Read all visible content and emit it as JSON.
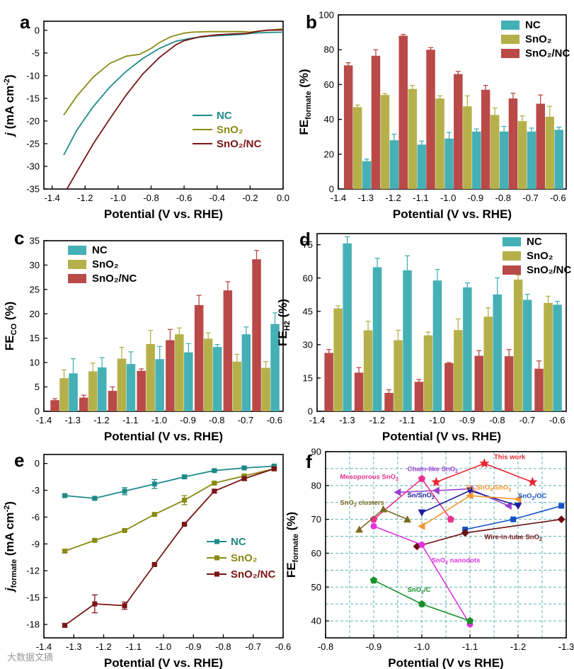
{
  "watermark": "大数据文摘",
  "chart_data": [
    {
      "panel": "a",
      "type": "line",
      "xlabel": "Potential (V vs. RHE)",
      "ylabel_main": "j",
      "ylabel_unit": "(mA cm",
      "ylabel_sup": "-2",
      "ylabel_close": ")",
      "xlim": [
        -1.45,
        0.0
      ],
      "ylim": [
        -35,
        2
      ],
      "xticks": [
        "-1.4",
        "-1.2",
        "-1.0",
        "-0.8",
        "-0.6",
        "-0.4",
        "-0.2",
        "0.0"
      ],
      "xtick_values": [
        -1.4,
        -1.2,
        -1.0,
        -0.8,
        -0.6,
        -0.4,
        -0.2,
        0.0
      ],
      "yticks": [
        "0",
        "-5",
        "-10",
        "-15",
        "-20",
        "-25",
        "-30",
        "-35"
      ],
      "ytick_values": [
        0,
        -5,
        -10,
        -15,
        -20,
        -25,
        -30,
        -35
      ],
      "legend": "center-right",
      "series": [
        {
          "name": "NC",
          "color": "#1f8a8a",
          "x": [
            -1.33,
            -1.25,
            -1.15,
            -1.05,
            -0.95,
            -0.85,
            -0.75,
            -0.65,
            -0.55,
            -0.45,
            -0.35,
            -0.25,
            -0.18,
            -0.1,
            0.0
          ],
          "y": [
            -27.5,
            -22.0,
            -16.8,
            -12.5,
            -9.0,
            -6.2,
            -4.0,
            -2.4,
            -1.7,
            -1.3,
            -1.1,
            -0.9,
            -0.6,
            -0.5,
            -0.4
          ]
        },
        {
          "name": "SnO2",
          "color": "#8a8a14",
          "x": [
            -1.33,
            -1.25,
            -1.15,
            -1.05,
            -0.95,
            -0.87,
            -0.8,
            -0.75,
            -0.68,
            -0.6,
            -0.55,
            -0.45,
            -0.35,
            -0.25,
            -0.2,
            -0.1,
            0.0
          ],
          "y": [
            -18.7,
            -14.5,
            -10.3,
            -7.3,
            -5.7,
            -5.3,
            -4.0,
            -2.7,
            -1.4,
            -0.6,
            -0.4,
            -0.3,
            -0.3,
            -0.3,
            -0.4,
            0.0,
            0.3
          ]
        },
        {
          "name": "SnO2/NC",
          "color": "#7a1414",
          "x": [
            -1.31,
            -1.25,
            -1.15,
            -1.05,
            -0.95,
            -0.85,
            -0.75,
            -0.65,
            -0.6,
            -0.5,
            -0.4,
            -0.3,
            -0.22,
            -0.15,
            -0.1,
            0.0
          ],
          "y": [
            -35.0,
            -31.2,
            -25.0,
            -19.5,
            -14.2,
            -9.6,
            -6.0,
            -3.2,
            -2.3,
            -1.4,
            -1.0,
            -0.8,
            -0.7,
            -0.2,
            0.0,
            0.1
          ]
        }
      ]
    },
    {
      "panel": "b",
      "type": "bar",
      "error_bars": true,
      "xlabel": "Potential (V vs. RHE)",
      "ylabel_main": "FE",
      "ylabel_sub": "formate",
      "ylabel_unit": "(%)",
      "xlim": [
        -1.4,
        -0.57
      ],
      "ylim": [
        0,
        100
      ],
      "xticks": [
        "-1.4",
        "-1.3",
        "-1.2",
        "-1.1",
        "-1.0",
        "-0.9",
        "-0.8",
        "-0.7",
        "-0.6"
      ],
      "xtick_values": [
        -1.4,
        -1.3,
        -1.2,
        -1.1,
        -1.0,
        -0.9,
        -0.8,
        -0.7,
        -0.6
      ],
      "yticks": [
        "0",
        "20",
        "40",
        "60",
        "80",
        "100"
      ],
      "ytick_values": [
        0,
        20,
        40,
        60,
        80,
        100
      ],
      "legend": "top-right",
      "categories": [
        -1.33,
        -1.23,
        -1.13,
        -1.03,
        -0.93,
        -0.83,
        -0.73,
        -0.63
      ],
      "series": [
        {
          "name": "SnO2/NC",
          "color": "#b94a48",
          "values": [
            71,
            76.5,
            88,
            80,
            66,
            57,
            52,
            49
          ],
          "errors": [
            1.5,
            3.5,
            0.8,
            1.2,
            1.5,
            2.5,
            3,
            5
          ]
        },
        {
          "name": "SnO2",
          "color": "#b5b04a",
          "values": [
            47,
            54,
            57.5,
            52,
            47.5,
            42.5,
            39,
            41.5
          ],
          "errors": [
            1.2,
            0.8,
            2,
            1.5,
            6,
            4,
            3,
            6
          ]
        },
        {
          "name": "NC",
          "color": "#45b0b5",
          "values": [
            16,
            28,
            25.5,
            29,
            33,
            33,
            33,
            34
          ],
          "errors": [
            1.2,
            3.5,
            2,
            3.5,
            1.5,
            3,
            2,
            1.5
          ]
        }
      ],
      "legend_order": [
        "NC",
        "SnO2",
        "SnO2/NC"
      ]
    },
    {
      "panel": "c",
      "type": "bar",
      "error_bars": true,
      "xlabel": "Potential (V vs. RHE)",
      "ylabel_main": "FE",
      "ylabel_sub": "CO",
      "ylabel_unit": "(%)",
      "xlim": [
        -1.4,
        -0.57
      ],
      "ylim": [
        0,
        35
      ],
      "xticks": [
        "-1.4",
        "-1.3",
        "-1.2",
        "-1.1",
        "-1.0",
        "-0.9",
        "-0.8",
        "-0.7",
        "-0.6"
      ],
      "xtick_values": [
        -1.4,
        -1.3,
        -1.2,
        -1.1,
        -1.0,
        -0.9,
        -0.8,
        -0.7,
        -0.6
      ],
      "yticks": [
        "0",
        "5",
        "10",
        "15",
        "20",
        "25",
        "30",
        "35"
      ],
      "ytick_values": [
        0,
        5,
        10,
        15,
        20,
        25,
        30,
        35
      ],
      "legend": "top-left",
      "categories": [
        -1.33,
        -1.23,
        -1.13,
        -1.03,
        -0.93,
        -0.83,
        -0.73,
        -0.63
      ],
      "series": [
        {
          "name": "SnO2/NC",
          "color": "#b94a48",
          "values": [
            2.3,
            2.8,
            4.2,
            8.3,
            14.6,
            21.8,
            24.8,
            31.2
          ],
          "errors": [
            0.3,
            0.5,
            0.8,
            0.4,
            2.2,
            2,
            1.8,
            1.8
          ]
        },
        {
          "name": "SnO2",
          "color": "#b5b04a",
          "values": [
            6.8,
            8.2,
            10.8,
            13.8,
            15.8,
            14.9,
            10.2,
            8.9
          ],
          "errors": [
            1.7,
            1.7,
            2.3,
            2.8,
            1.3,
            1.2,
            1.5,
            1.3
          ]
        },
        {
          "name": "NC",
          "color": "#45b0b5",
          "values": [
            7.8,
            9.0,
            9.7,
            10.7,
            12.1,
            13.2,
            15.8,
            17.9
          ],
          "errors": [
            3,
            2,
            2.5,
            2.6,
            1.8,
            0.5,
            1.5,
            2.3
          ]
        }
      ],
      "legend_order": [
        "NC",
        "SnO2",
        "SnO2/NC"
      ]
    },
    {
      "panel": "d",
      "type": "bar",
      "error_bars": true,
      "xlabel": "Potential (V vs. RHE)",
      "ylabel_main": "FE",
      "ylabel_sub": "H2",
      "ylabel_unit": "(%)",
      "xlim": [
        -1.4,
        -0.57
      ],
      "ylim": [
        0,
        80
      ],
      "xticks": [
        "-1.4",
        "-1.3",
        "-1.2",
        "-1.1",
        "-1.0",
        "-0.9",
        "-0.8",
        "-0.7",
        "-0.6"
      ],
      "xtick_values": [
        -1.4,
        -1.3,
        -1.2,
        -1.1,
        -1.0,
        -0.9,
        -0.8,
        -0.7,
        -0.6
      ],
      "yticks": [
        "0",
        "15",
        "30",
        "45",
        "60",
        "75"
      ],
      "ytick_values": [
        0,
        15,
        30,
        45,
        60,
        75
      ],
      "legend": "top-right",
      "categories": [
        -1.33,
        -1.23,
        -1.13,
        -1.03,
        -0.93,
        -0.83,
        -0.73,
        -0.63
      ],
      "series": [
        {
          "name": "SnO2/NC",
          "color": "#b94a48",
          "values": [
            26.3,
            17.4,
            8.3,
            13.3,
            21.7,
            25,
            24.8,
            19.2
          ],
          "errors": [
            1.5,
            2.3,
            1.4,
            1,
            0.3,
            2.3,
            3,
            3.5
          ]
        },
        {
          "name": "SnO2",
          "color": "#b5b04a",
          "values": [
            46.3,
            36.5,
            32,
            34.2,
            36.6,
            42.6,
            59.3,
            48.8
          ],
          "errors": [
            1.2,
            4,
            4.5,
            1.5,
            5,
            4,
            2,
            3
          ]
        },
        {
          "name": "NC",
          "color": "#45b0b5",
          "values": [
            75.6,
            64.9,
            63.5,
            58.9,
            55.8,
            52.6,
            50.2,
            48
          ],
          "errors": [
            3,
            4,
            6.5,
            5,
            2,
            7.5,
            2.5,
            1.5
          ]
        }
      ],
      "legend_order": [
        "NC",
        "SnO2",
        "SnO2/NC"
      ]
    },
    {
      "panel": "e",
      "type": "line",
      "error_bars": true,
      "xlabel": "Potential (V vs. RHE)",
      "ylabel_main": "j",
      "ylabel_sub": "formate",
      "ylabel_unit": "(mA cm",
      "ylabel_sup": "-2",
      "ylabel_close": ")",
      "xlim": [
        -1.4,
        -0.6
      ],
      "ylim": [
        -19.5,
        1
      ],
      "xticks": [
        "-1.4",
        "-1.3",
        "-1.2",
        "-1.1",
        "-1.0",
        "-0.9",
        "-0.8",
        "-0.7",
        "-0.6"
      ],
      "xtick_values": [
        -1.4,
        -1.3,
        -1.2,
        -1.1,
        -1.0,
        -0.9,
        -0.8,
        -0.7,
        -0.6
      ],
      "yticks": [
        "0",
        "-3",
        "-6",
        "-9",
        "-12",
        "-15",
        "-18"
      ],
      "ytick_values": [
        0,
        -3,
        -6,
        -9,
        -12,
        -15,
        -18
      ],
      "legend": "center-right",
      "x": [
        -1.33,
        -1.23,
        -1.13,
        -1.03,
        -0.93,
        -0.83,
        -0.73,
        -0.63
      ],
      "series": [
        {
          "name": "NC",
          "color": "#1f8a8a",
          "values": [
            -3.6,
            -3.9,
            -3.1,
            -2.3,
            -1.5,
            -0.8,
            -0.5,
            -0.3
          ],
          "errors": [
            0.1,
            0.1,
            0.4,
            0.5,
            0.2,
            0.1,
            0.1,
            0.1
          ]
        },
        {
          "name": "SnO2",
          "color": "#8a8a14",
          "values": [
            -9.8,
            -8.6,
            -7.5,
            -5.7,
            -4.1,
            -2.2,
            -1.4,
            -0.6
          ],
          "errors": [
            0.2,
            0.1,
            0.1,
            0.1,
            0.5,
            0.1,
            0.1,
            0.1
          ]
        },
        {
          "name": "SnO2/NC",
          "color": "#7a1414",
          "values": [
            -18.1,
            -15.7,
            -15.9,
            -11.3,
            -6.8,
            -3.1,
            -1.7,
            -0.6
          ],
          "errors": [
            0.2,
            1,
            0.4,
            0.1,
            0.1,
            0.2,
            0.2,
            0.1
          ]
        }
      ]
    },
    {
      "panel": "f",
      "type": "scatter",
      "xlabel": "Potential (V vs RHE)",
      "ylabel_main": "FE",
      "ylabel_sub": "formate",
      "ylabel_unit": "(%)",
      "xlim": [
        -0.8,
        -1.3
      ],
      "ylim": [
        35,
        90
      ],
      "grid": true,
      "grid_color": "#5fb3b3",
      "xticks": [
        "-0.8",
        "-0.9",
        "-1.0",
        "-1.1",
        "-1.2",
        "-1.3"
      ],
      "xtick_values": [
        -0.8,
        -0.9,
        -1.0,
        -1.1,
        -1.2,
        -1.3
      ],
      "yticks": [
        "40",
        "50",
        "60",
        "70",
        "80",
        "90"
      ],
      "ytick_values": [
        40,
        50,
        60,
        70,
        80,
        90
      ],
      "series": [
        {
          "name": "This work",
          "color": "#e8262f",
          "marker": "star",
          "x": [
            -1.03,
            -1.13,
            -1.23
          ],
          "y": [
            81,
            86.5,
            81
          ]
        },
        {
          "name": "Chain-like SnO2",
          "color": "#9a3fd0",
          "marker": "tri-left",
          "x": [
            -0.95,
            -1.03,
            -1.1,
            -1.18
          ],
          "y": [
            78,
            78.5,
            79,
            74
          ]
        },
        {
          "name": "Mesoporous SnO2",
          "color": "#e8318f",
          "marker": "pentagon",
          "x": [
            -0.9,
            -1.0,
            -1.06
          ],
          "y": [
            70,
            82,
            70
          ]
        },
        {
          "name": "Sn/SnO2",
          "color": "#1c1c9e",
          "marker": "tri-down",
          "x": [
            -1.0,
            -1.1,
            -1.2
          ],
          "y": [
            72,
            78.5,
            74
          ]
        },
        {
          "name": "Zn2SnO4/SnO2",
          "color": "#f2962e",
          "marker": "tri-left",
          "x": [
            -1.0,
            -1.1,
            -1.2
          ],
          "y": [
            68,
            77,
            76
          ]
        },
        {
          "name": "SnO2/OC",
          "color": "#1450c8",
          "marker": "square",
          "x": [
            -1.09,
            -1.19,
            -1.29
          ],
          "y": [
            67,
            70,
            74
          ]
        },
        {
          "name": "SnO2 clusters",
          "color": "#7c6a22",
          "marker": "tri-up",
          "x": [
            -0.87,
            -0.92,
            -0.97
          ],
          "y": [
            67,
            73,
            70
          ]
        },
        {
          "name": "Wire-in-tube SnO2",
          "color": "#6e1010",
          "marker": "diamond",
          "x": [
            -0.99,
            -1.09,
            -1.29
          ],
          "y": [
            62,
            66,
            70
          ]
        },
        {
          "name": "SnO2 nanodots",
          "color": "#e033e0",
          "marker": "circle",
          "x": [
            -0.9,
            -1.0,
            -1.1
          ],
          "y": [
            68,
            62.5,
            39
          ]
        },
        {
          "name": "SnO2/C",
          "color": "#17912a",
          "marker": "pentagon",
          "x": [
            -0.9,
            -1.0,
            -1.1
          ],
          "y": [
            52,
            45,
            40
          ]
        }
      ],
      "labels": [
        {
          "text": "This work",
          "sub": "",
          "at": [
            -1.15,
            87.8
          ],
          "color": "#e8262f"
        },
        {
          "text": "Chain-like SnO",
          "sub": "2",
          "at": [
            -0.97,
            84.2
          ],
          "color": "#9a3fd0"
        },
        {
          "text": "Mesoporous SnO",
          "sub": "2",
          "at": [
            -0.83,
            82.0
          ],
          "color": "#e8318f"
        },
        {
          "text": "Sn/SnO",
          "sub": "2",
          "at": [
            -0.97,
            76.5
          ],
          "color": "#1c1c9e"
        },
        {
          "text": "Zn",
          "sub": "2",
          "tail": "SnO",
          "sub2": "4",
          "tail2": "/SnO",
          "sub3": "2",
          "at": [
            -1.09,
            78.8
          ],
          "color": "#f2962e"
        },
        {
          "text": "SnO",
          "sub": "2",
          "tail": "/OC",
          "at": [
            -1.2,
            76.3
          ],
          "color": "#1450c8"
        },
        {
          "text": "SnO",
          "sub": "2",
          "tail": " clusters",
          "at": [
            -0.83,
            74.3
          ],
          "color": "#7c6a22"
        },
        {
          "text": "Wire-in-tube SnO",
          "sub": "2",
          "at": [
            -1.13,
            64.2
          ],
          "color": "#6e1010"
        },
        {
          "text": "SnO",
          "sub": "2",
          "tail": " nanodots",
          "at": [
            -1.02,
            57.3
          ],
          "color": "#e033e0"
        },
        {
          "text": "SnO",
          "sub": "2",
          "tail": "/C",
          "at": [
            -0.97,
            48.6
          ],
          "color": "#17912a"
        }
      ]
    }
  ]
}
